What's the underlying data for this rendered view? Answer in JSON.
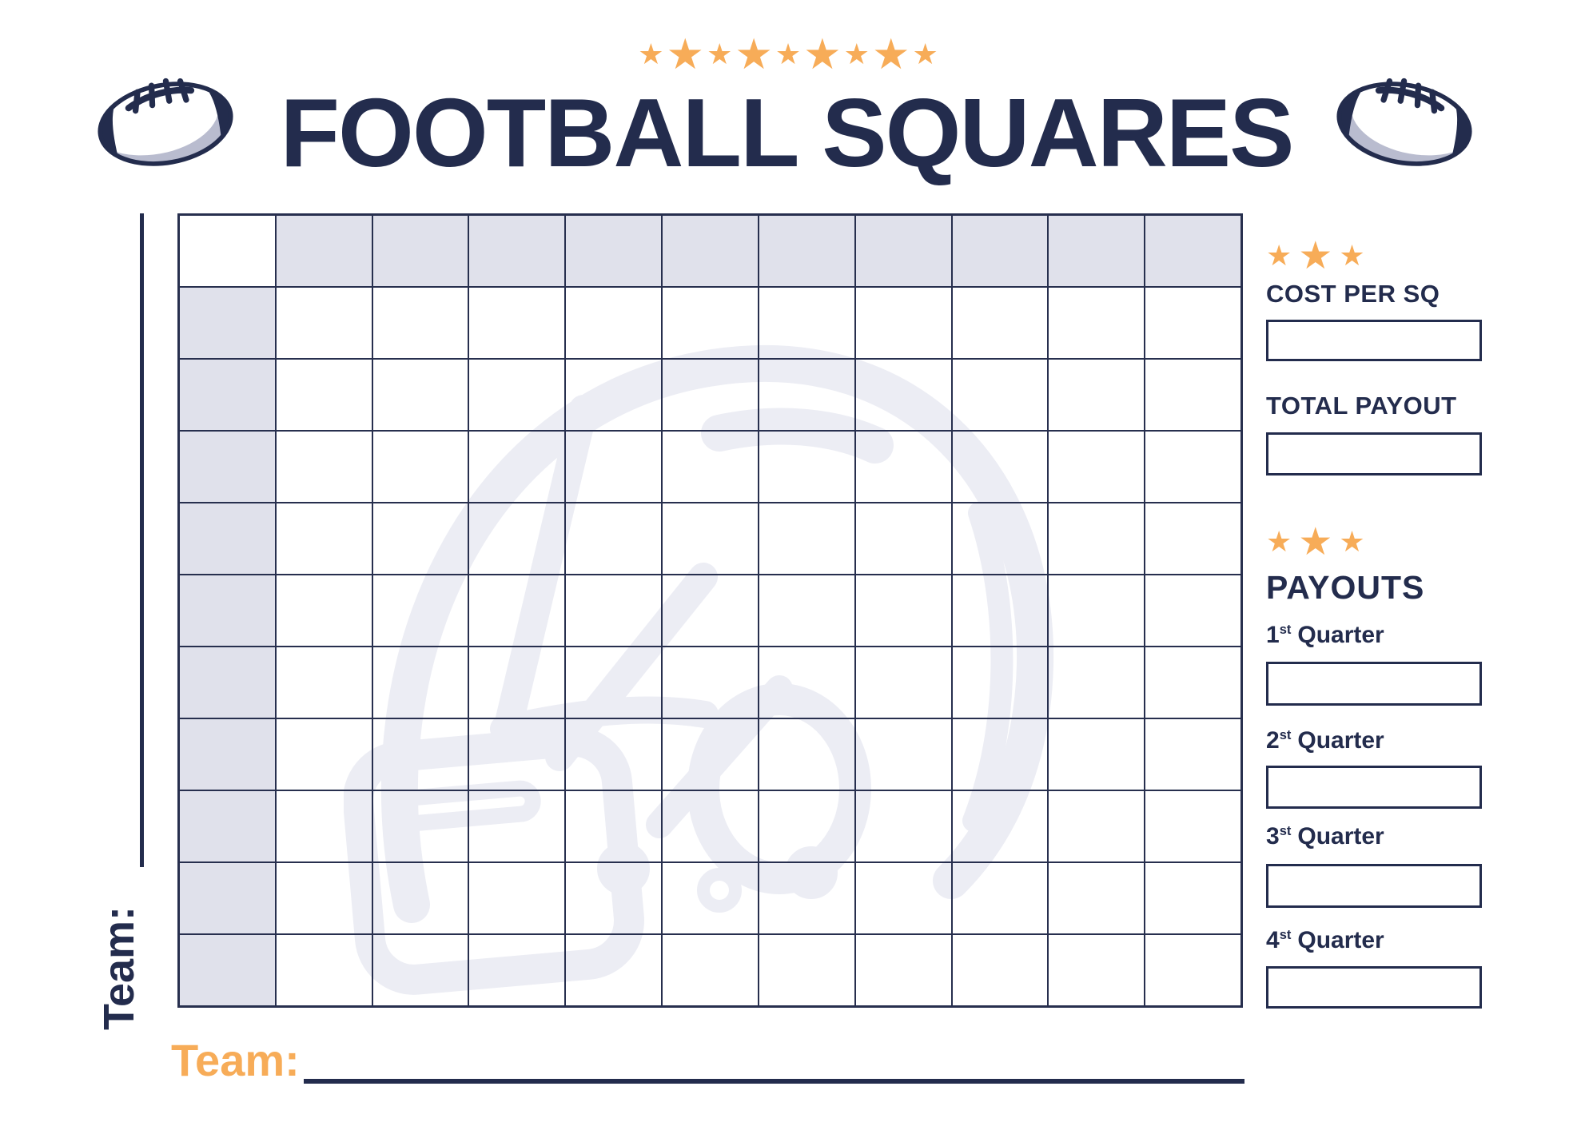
{
  "header": {
    "title": "FOOTBALL SQUARES"
  },
  "icons": {
    "star": "★"
  },
  "grid": {
    "rows": 11,
    "cols": 11
  },
  "labels": {
    "team_side": "Team:",
    "team_bottom": "Team:"
  },
  "sidebar": {
    "cost": {
      "label": "COST PER SQ",
      "value": ""
    },
    "total": {
      "label": "TOTAL PAYOUT",
      "value": ""
    },
    "payouts_heading": "PAYOUTS",
    "quarters": [
      {
        "num": "1",
        "ord": "st",
        "word": "Quarter",
        "value": ""
      },
      {
        "num": "2",
        "ord": "st",
        "word": "Quarter",
        "value": ""
      },
      {
        "num": "3",
        "ord": "st",
        "word": "Quarter",
        "value": ""
      },
      {
        "num": "4",
        "ord": "st",
        "word": "Quarter",
        "value": ""
      }
    ]
  },
  "colors": {
    "navy": "#232C4D",
    "orange": "#F7AC58",
    "grid_line": "#272F4E",
    "header_fill": "#E0E1EB",
    "watermark": "#ECEDF4",
    "shadow": "#B9BCCF"
  }
}
